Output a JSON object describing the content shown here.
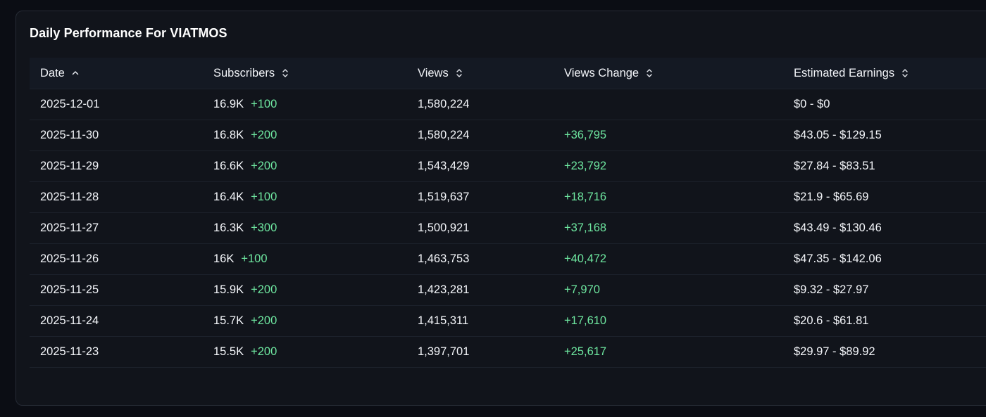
{
  "card": {
    "title": "Daily Performance For VIATMOS"
  },
  "table": {
    "columns": [
      {
        "label": "Date",
        "sort_icon": "chevron-up-icon"
      },
      {
        "label": "Subscribers",
        "sort_icon": "chevron-up-down-icon"
      },
      {
        "label": "Views",
        "sort_icon": "chevron-up-down-icon"
      },
      {
        "label": "Views Change",
        "sort_icon": "chevron-up-down-icon"
      },
      {
        "label": "Estimated Earnings",
        "sort_icon": "chevron-up-down-icon"
      }
    ],
    "rows": [
      {
        "date": "2025-12-01",
        "subscribers": "16.9K",
        "subscribers_change": "+100",
        "views": "1,580,224",
        "views_change": "",
        "earnings": "$0 - $0"
      },
      {
        "date": "2025-11-30",
        "subscribers": "16.8K",
        "subscribers_change": "+200",
        "views": "1,580,224",
        "views_change": "+36,795",
        "earnings": "$43.05 - $129.15"
      },
      {
        "date": "2025-11-29",
        "subscribers": "16.6K",
        "subscribers_change": "+200",
        "views": "1,543,429",
        "views_change": "+23,792",
        "earnings": "$27.84 - $83.51"
      },
      {
        "date": "2025-11-28",
        "subscribers": "16.4K",
        "subscribers_change": "+100",
        "views": "1,519,637",
        "views_change": "+18,716",
        "earnings": "$21.9 - $65.69"
      },
      {
        "date": "2025-11-27",
        "subscribers": "16.3K",
        "subscribers_change": "+300",
        "views": "1,500,921",
        "views_change": "+37,168",
        "earnings": "$43.49 - $130.46"
      },
      {
        "date": "2025-11-26",
        "subscribers": "16K",
        "subscribers_change": "+100",
        "views": "1,463,753",
        "views_change": "+40,472",
        "earnings": "$47.35 - $142.06"
      },
      {
        "date": "2025-11-25",
        "subscribers": "15.9K",
        "subscribers_change": "+200",
        "views": "1,423,281",
        "views_change": "+7,970",
        "earnings": "$9.32 - $27.97"
      },
      {
        "date": "2025-11-24",
        "subscribers": "15.7K",
        "subscribers_change": "+200",
        "views": "1,415,311",
        "views_change": "+17,610",
        "earnings": "$20.6 - $61.81"
      },
      {
        "date": "2025-11-23",
        "subscribers": "15.5K",
        "subscribers_change": "+200",
        "views": "1,397,701",
        "views_change": "+25,617",
        "earnings": "$29.97 - $89.92"
      }
    ]
  },
  "colors": {
    "page_background": "#0b0d14",
    "card_background": "#11141b",
    "header_background": "#141923",
    "positive": "#6ee7a0",
    "text": "#f4f6fa"
  }
}
